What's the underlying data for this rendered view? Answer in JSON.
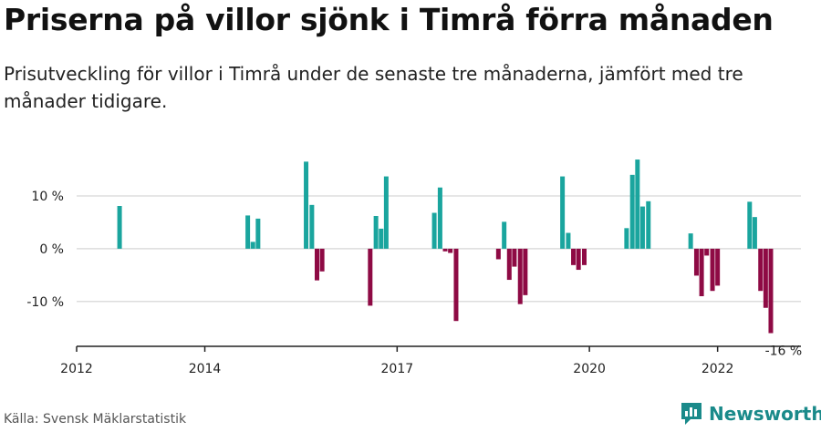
{
  "header": {
    "title": "Priserna på villor sjönk i Timrå förra månaden",
    "subtitle": "Prisutveckling för villor i Timrå under de senaste tre månaderna, jämfört med tre månader tidigare."
  },
  "footer": {
    "source": "Källa: Svensk Mäklarstatistik",
    "brand": "Newsworthy"
  },
  "colors": {
    "positive": "#1aa59e",
    "negative": "#8e0a44",
    "grid": "#dddddd",
    "axis": "#222222"
  },
  "chart_data": {
    "type": "bar",
    "title": "Priserna på villor sjönk i Timrå förra månaden",
    "subtitle": "Prisutveckling för villor i Timrå under de senaste tre månaderna, jämfört med tre månader tidigare.",
    "xlabel": "",
    "ylabel": "",
    "x_ticks": [
      {
        "label": "2012",
        "value": 2012.0
      },
      {
        "label": "2014",
        "value": 2014.0
      },
      {
        "label": "2017",
        "value": 2017.0
      },
      {
        "label": "2020",
        "value": 2020.0
      },
      {
        "label": "2022",
        "value": 2022.0
      }
    ],
    "y_ticks": [
      {
        "label": "10 %",
        "value": 10
      },
      {
        "label": "0 %",
        "value": 0
      },
      {
        "label": "-10 %",
        "value": -10
      }
    ],
    "xlim": [
      2012.0,
      2023.3
    ],
    "ylim": [
      -18.5,
      19.5
    ],
    "grid": true,
    "annotation": {
      "label": "-16 %",
      "x": 2023.0,
      "y": -16
    },
    "series": [
      {
        "x": [
          2012.67,
          2014.67,
          2014.75,
          2014.83,
          2015.58,
          2015.67,
          2015.75,
          2015.83,
          2016.58,
          2016.67,
          2016.75,
          2016.83,
          2017.58,
          2017.67,
          2017.75,
          2017.83,
          2017.92,
          2018.58,
          2018.67,
          2018.75,
          2018.83,
          2018.92,
          2019.0,
          2019.58,
          2019.67,
          2019.75,
          2019.83,
          2019.92,
          2020.58,
          2020.67,
          2020.75,
          2020.83,
          2020.92,
          2021.58,
          2021.67,
          2021.75,
          2021.83,
          2021.92,
          2022.0,
          2022.5,
          2022.58,
          2022.67,
          2022.75,
          2022.83
        ],
        "values": [
          8.1,
          6.3,
          1.3,
          5.7,
          16.5,
          8.3,
          -6,
          -4.3,
          -10.8,
          6.2,
          3.8,
          13.7,
          6.8,
          11.6,
          -0.5,
          -0.8,
          -13.7,
          -2,
          5.1,
          -5.9,
          -3.4,
          -10.5,
          -8.8,
          13.7,
          3,
          -3.1,
          -4,
          -3.1,
          3.9,
          14,
          16.9,
          8,
          9,
          2.9,
          -5.1,
          -9,
          -1.3,
          -8,
          -7,
          8.9,
          6,
          -8,
          -11.2,
          -16
        ]
      }
    ]
  }
}
